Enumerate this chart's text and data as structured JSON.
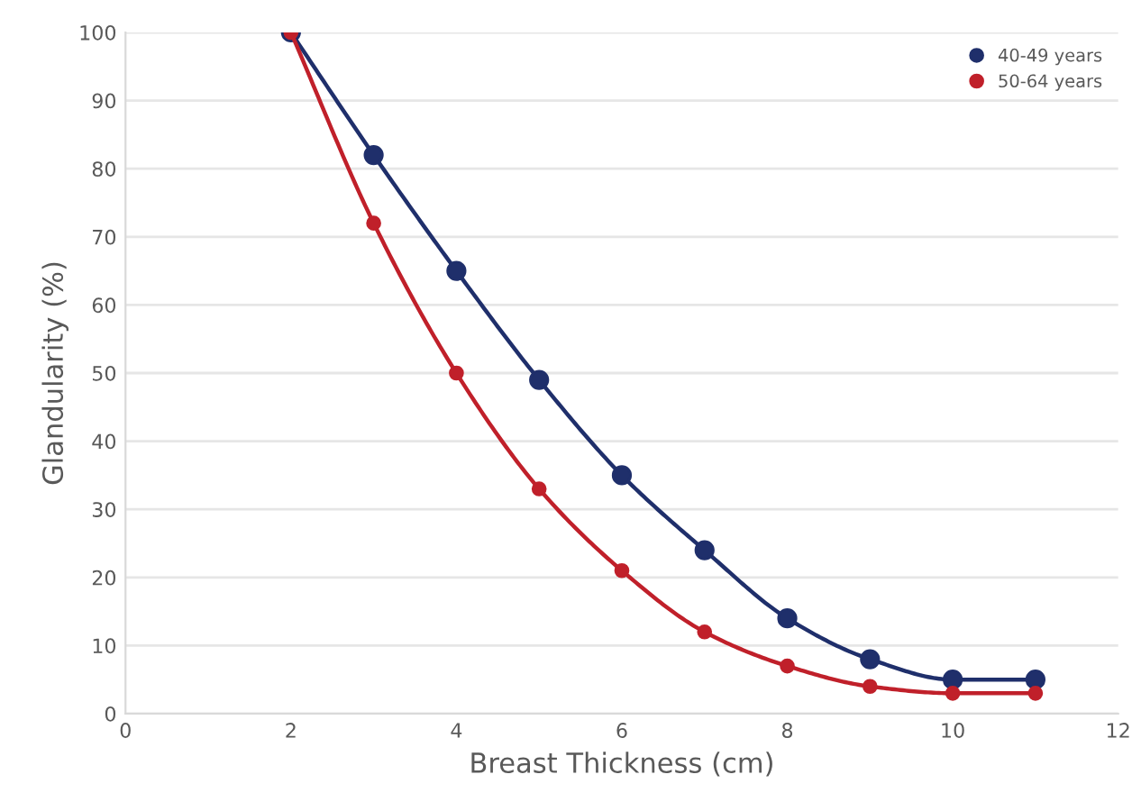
{
  "chart_data": {
    "type": "line",
    "xlabel": "Breast Thickness (cm)",
    "ylabel": "Glandularity (%)",
    "x": [
      2,
      3,
      4,
      5,
      6,
      7,
      8,
      9,
      10,
      11
    ],
    "series": [
      {
        "name": "40-49 years",
        "color": "#1f2f6b",
        "values": [
          100,
          82,
          65,
          49,
          35,
          24,
          14,
          8,
          5,
          5
        ]
      },
      {
        "name": "50-64 years",
        "color": "#c0202a",
        "values": [
          100,
          72,
          50,
          33,
          21,
          12,
          7,
          4,
          3,
          3
        ]
      }
    ],
    "xlim": [
      0,
      12
    ],
    "xticks": [
      0,
      2,
      4,
      6,
      8,
      10,
      12
    ],
    "ylim": [
      0,
      100
    ],
    "yticks": [
      0,
      10,
      20,
      30,
      40,
      50,
      60,
      70,
      80,
      90,
      100
    ],
    "grid": "y",
    "legend": "top right",
    "marker": "circle",
    "line_style": "solid"
  }
}
